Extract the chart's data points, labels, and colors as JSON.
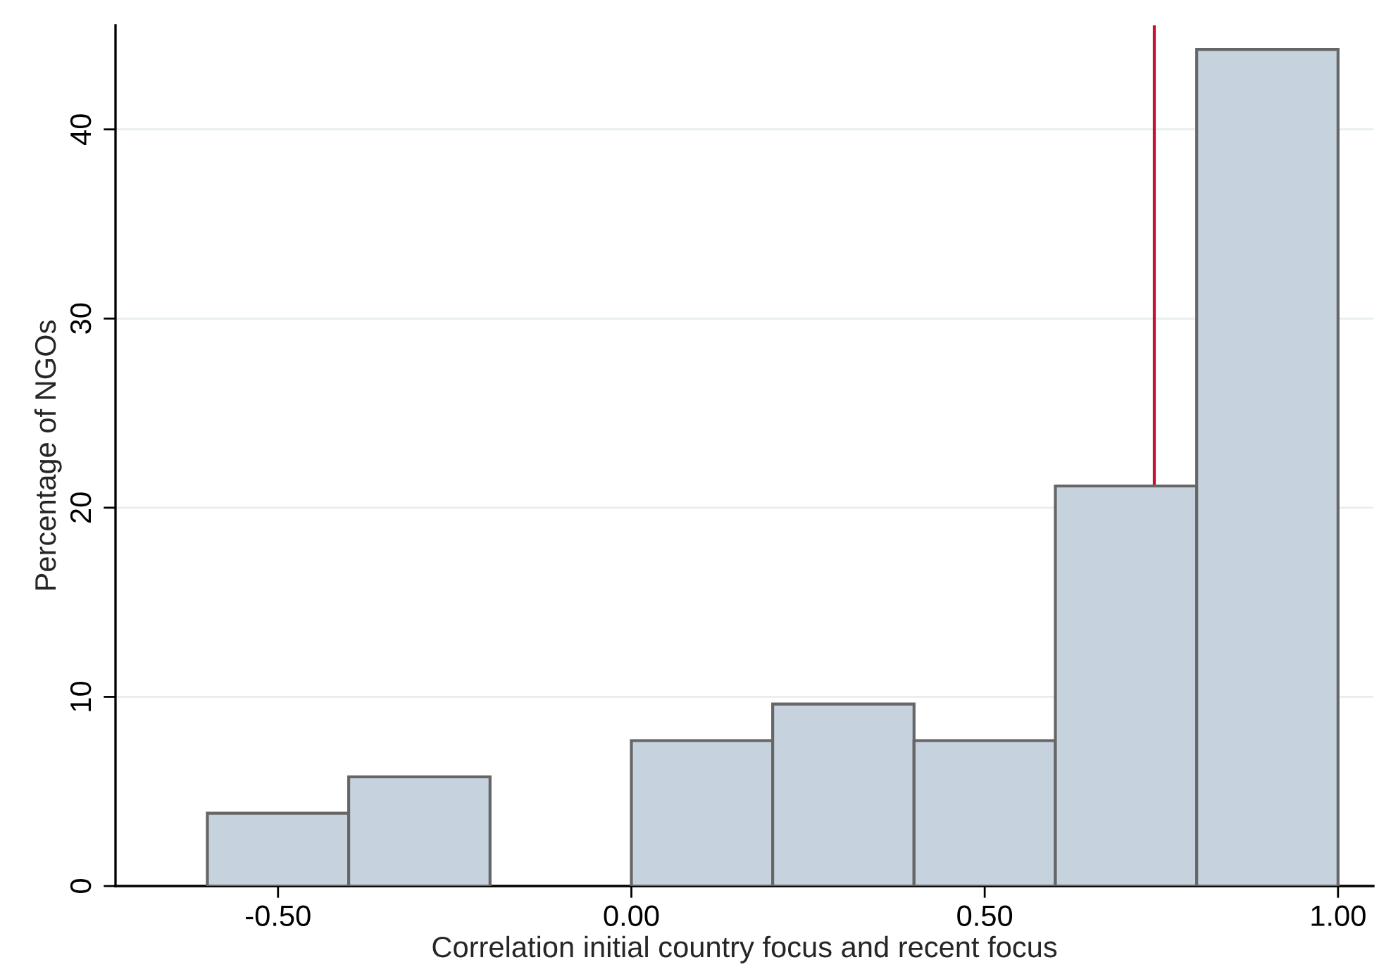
{
  "chart_data": {
    "type": "histogram",
    "xlabel": "Correlation initial country focus and recent focus",
    "ylabel": "Percentage of NGOs",
    "bins": [
      -0.6,
      -0.4,
      -0.2,
      0.0,
      0.2,
      0.4,
      0.6,
      0.8,
      1.0
    ],
    "values": [
      3.85,
      5.77,
      0,
      7.69,
      9.62,
      7.69,
      21.15,
      44.23
    ],
    "color": "#c6d3df",
    "xlim": [
      -0.73,
      1.05
    ],
    "ylim": [
      0,
      45.5
    ],
    "xticks": [
      {
        "value": -0.5,
        "label": "-0.50"
      },
      {
        "value": 0,
        "label": "0.00"
      },
      {
        "value": 0.5,
        "label": "0.50"
      },
      {
        "value": 1,
        "label": "1.00"
      }
    ],
    "yticks": [
      0,
      10,
      20,
      30,
      40
    ],
    "grid": "y",
    "ref_lines": [
      {
        "axis": "x",
        "value": 0.74,
        "color": "#c8102e"
      }
    ]
  }
}
